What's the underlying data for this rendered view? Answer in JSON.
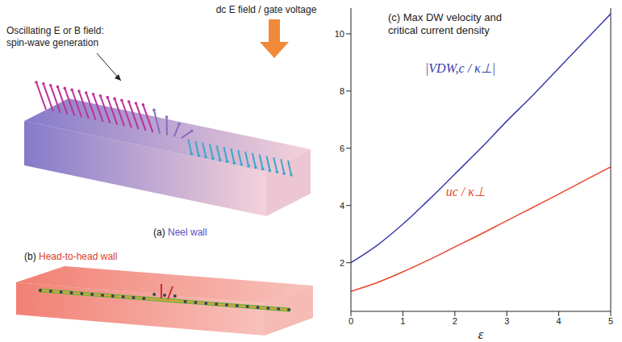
{
  "chart_data": {
    "type": "line",
    "title": "(c) Max DW velocity and critical current density",
    "x_label": "ε",
    "x": [
      0,
      0.5,
      1,
      1.5,
      2,
      2.5,
      3,
      3.5,
      4,
      4.5,
      5
    ],
    "xlim": [
      0,
      5
    ],
    "xticks": [
      0,
      1,
      2,
      3,
      4,
      5
    ],
    "ylim": [
      0.3,
      10.9
    ],
    "yticks": [
      2,
      4,
      6,
      8,
      10
    ],
    "grid": false,
    "series": [
      {
        "name": "|VDW,c / κ⊥|",
        "color": "#3b3bb0",
        "values": [
          2.0,
          2.6,
          3.35,
          4.2,
          5.1,
          6.0,
          6.95,
          7.85,
          8.8,
          9.75,
          10.7
        ]
      },
      {
        "name": "uc / κ⊥",
        "color": "#e8472a",
        "values": [
          1.0,
          1.3,
          1.68,
          2.1,
          2.55,
          3.0,
          3.47,
          3.93,
          4.4,
          4.88,
          5.35
        ]
      }
    ]
  },
  "diagram": {
    "top_arrow_label": "dc E field / gate voltage",
    "side_label": "Oscillating E or B field: spin-wave generation",
    "panels": [
      "(a) Neel wall",
      "(b) Head-to-head wall"
    ]
  }
}
